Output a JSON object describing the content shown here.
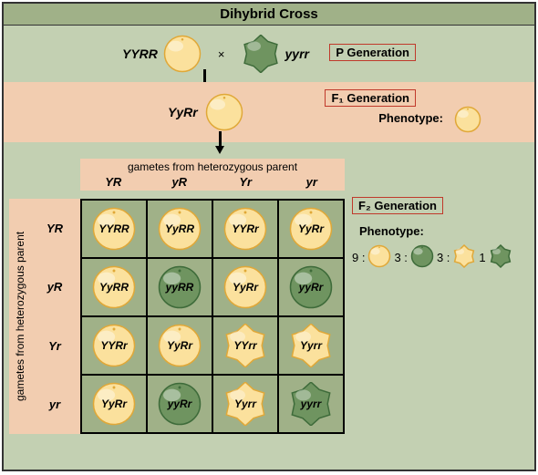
{
  "title": "Dihybrid Cross",
  "colors": {
    "yellow_light": "#fbe19d",
    "yellow_dark": "#e0a838",
    "green_light": "#7ea16a",
    "green_dark": "#3e6b3a",
    "bg_main": "#c3d0b2",
    "bg_band": "#f2cdb0",
    "bg_header": "#a0b188",
    "label_border": "#c0392b"
  },
  "p_generation": {
    "label": "P Generation",
    "parent1": {
      "genotype": "YYRR",
      "pea": "yellow_round"
    },
    "cross_symbol": "×",
    "parent2": {
      "genotype": "yyrr",
      "pea": "green_wrinkled"
    }
  },
  "f1_generation": {
    "label": "F₁ Generation",
    "genotype": "YyRr",
    "pea": "yellow_round",
    "phenotype_label": "Phenotype:",
    "phenotype_pea": "yellow_round"
  },
  "gametes_header": "gametes from heterozygous parent",
  "gametes_side": "gametes from heterozygous parent",
  "gamete_cols": [
    "YR",
    "yR",
    "Yr",
    "yr"
  ],
  "gamete_rows": [
    "YR",
    "yR",
    "Yr",
    "yr"
  ],
  "punnett": [
    [
      {
        "g": "YYRR",
        "p": "yellow_round"
      },
      {
        "g": "YyRR",
        "p": "yellow_round"
      },
      {
        "g": "YYRr",
        "p": "yellow_round"
      },
      {
        "g": "YyRr",
        "p": "yellow_round"
      }
    ],
    [
      {
        "g": "YyRR",
        "p": "yellow_round"
      },
      {
        "g": "yyRR",
        "p": "green_round"
      },
      {
        "g": "YyRr",
        "p": "yellow_round"
      },
      {
        "g": "yyRr",
        "p": "green_round"
      }
    ],
    [
      {
        "g": "YYRr",
        "p": "yellow_round"
      },
      {
        "g": "YyRr",
        "p": "yellow_round"
      },
      {
        "g": "YYrr",
        "p": "yellow_wrinkled"
      },
      {
        "g": "Yyrr",
        "p": "yellow_wrinkled"
      }
    ],
    [
      {
        "g": "YyRr",
        "p": "yellow_round"
      },
      {
        "g": "yyRr",
        "p": "green_round"
      },
      {
        "g": "Yyrr",
        "p": "yellow_wrinkled"
      },
      {
        "g": "yyrr",
        "p": "green_wrinkled"
      }
    ]
  ],
  "f2_generation": {
    "label": "F₂ Generation",
    "phenotype_label": "Phenotype:",
    "ratio": [
      {
        "n": "9 :",
        "p": "yellow_round"
      },
      {
        "n": "3 :",
        "p": "green_round"
      },
      {
        "n": "3 :",
        "p": "yellow_wrinkled"
      },
      {
        "n": "1",
        "p": "green_wrinkled"
      }
    ]
  },
  "pea_defs": {
    "yellow_round": {
      "fill": "#fbe19d",
      "shade": "#e0a838",
      "wrinkled": false
    },
    "green_round": {
      "fill": "#6f9460",
      "shade": "#3e6b3a",
      "wrinkled": false
    },
    "yellow_wrinkled": {
      "fill": "#fbe19d",
      "shade": "#e0a838",
      "wrinkled": true
    },
    "green_wrinkled": {
      "fill": "#6f9460",
      "shade": "#3e6b3a",
      "wrinkled": true
    }
  }
}
